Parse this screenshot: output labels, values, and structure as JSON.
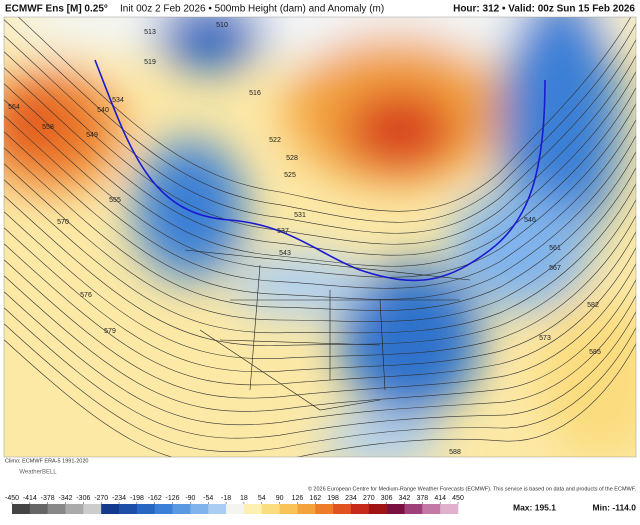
{
  "header": {
    "title": "ECMWF Ens [M] 0.25°",
    "subtitle": "Init 00z 2 Feb 2026 • 500mb Height (dam) and Anomaly (m)",
    "hour": "Hour: 312 • Valid: 00z Sun 15 Feb 2026"
  },
  "map": {
    "contour_labels": [
      564,
      558,
      549,
      540,
      534,
      519,
      513,
      510,
      516,
      522,
      528,
      525,
      531,
      537,
      543,
      555,
      570,
      576,
      579,
      546,
      561,
      567,
      573,
      582,
      585,
      588
    ]
  },
  "footer": {
    "climo": "Climo: ECMWF ERA-5 1991-2020",
    "logo": "WeatherBELL",
    "copyright": "© 2026 European Centre for Medium-Range Weather Forecasts (ECMWF). This service is based on data and products of the ECMWF.",
    "max": "Max: 195.1",
    "min": "Min: -114.0"
  },
  "colorbar": {
    "ticks": [
      -450,
      -414,
      -378,
      -342,
      -306,
      -270,
      -234,
      -198,
      -162,
      -126,
      -90,
      -54,
      -18,
      18,
      54,
      90,
      126,
      162,
      198,
      234,
      270,
      306,
      342,
      378,
      414,
      450
    ],
    "colors": [
      "#444444",
      "#666666",
      "#888888",
      "#aaaaaa",
      "#cccccc",
      "#133a8c",
      "#1d4fa8",
      "#2766c2",
      "#3b7fd6",
      "#5a99e2",
      "#80b3ec",
      "#aacdf4",
      "#f5f5f0",
      "#fdf0b0",
      "#fbdc7e",
      "#f8c45a",
      "#f3a23c",
      "#ec7b2a",
      "#e0521f",
      "#c72a1a",
      "#a01414",
      "#7a1040",
      "#a0407a",
      "#c478a6",
      "#e0b0cc"
    ]
  }
}
